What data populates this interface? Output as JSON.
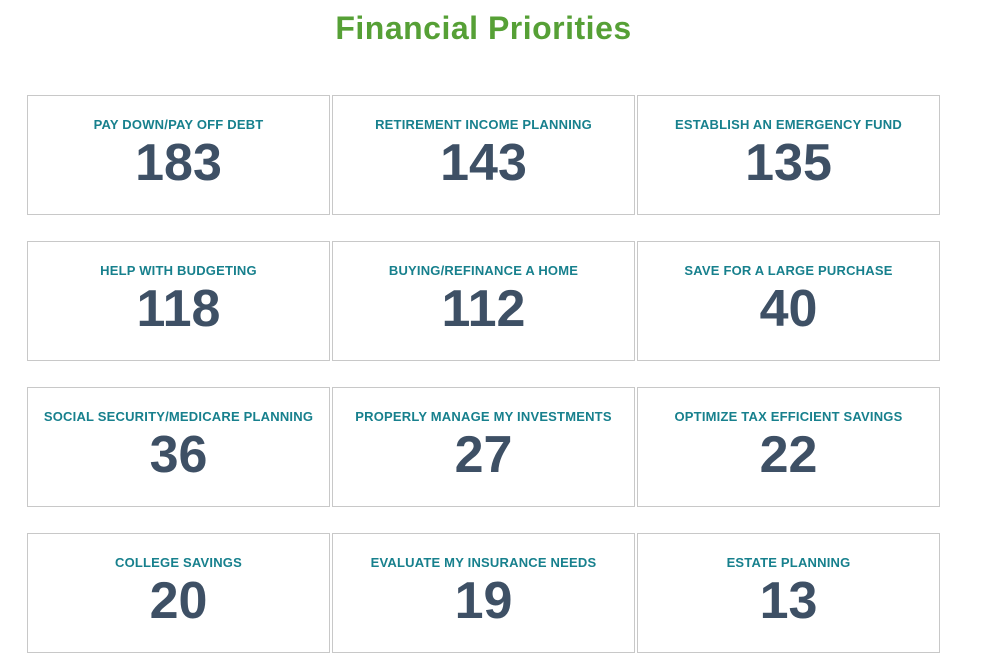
{
  "page": {
    "title": "Financial Priorities"
  },
  "colors": {
    "title_green": "#56A036",
    "label_teal": "#17808D",
    "value_slate": "#3E5065",
    "card_border": "#C8C8C8",
    "background": "#FFFFFF"
  },
  "cards": [
    {
      "label": "PAY DOWN/PAY OFF DEBT",
      "value": "183"
    },
    {
      "label": "RETIREMENT INCOME PLANNING",
      "value": "143"
    },
    {
      "label": "ESTABLISH AN EMERGENCY FUND",
      "value": "135"
    },
    {
      "label": "HELP WITH BUDGETING",
      "value": "118"
    },
    {
      "label": "BUYING/REFINANCE A HOME",
      "value": "112"
    },
    {
      "label": "SAVE FOR A LARGE PURCHASE",
      "value": "40"
    },
    {
      "label": "SOCIAL SECURITY/MEDICARE PLANNING",
      "value": "36"
    },
    {
      "label": "PROPERLY MANAGE MY INVESTMENTS",
      "value": "27"
    },
    {
      "label": "OPTIMIZE TAX EFFICIENT SAVINGS",
      "value": "22"
    },
    {
      "label": "COLLEGE SAVINGS",
      "value": "20"
    },
    {
      "label": "EVALUATE MY INSURANCE NEEDS",
      "value": "19"
    },
    {
      "label": "ESTATE PLANNING",
      "value": "13"
    }
  ],
  "chart_data": {
    "type": "table",
    "title": "Financial Priorities",
    "layout": "4-row by 3-column grid of KPI scorecard tiles, values sorted descending left-to-right, top-to-bottom",
    "categories": [
      "PAY DOWN/PAY OFF DEBT",
      "RETIREMENT INCOME PLANNING",
      "ESTABLISH AN EMERGENCY FUND",
      "HELP WITH BUDGETING",
      "BUYING/REFINANCE A HOME",
      "SAVE FOR A LARGE PURCHASE",
      "SOCIAL SECURITY/MEDICARE PLANNING",
      "PROPERLY MANAGE MY INVESTMENTS",
      "OPTIMIZE TAX EFFICIENT SAVINGS",
      "COLLEGE SAVINGS",
      "EVALUATE MY INSURANCE NEEDS",
      "ESTATE PLANNING"
    ],
    "values": [
      183,
      143,
      135,
      118,
      112,
      40,
      36,
      27,
      22,
      20,
      19,
      13
    ]
  }
}
